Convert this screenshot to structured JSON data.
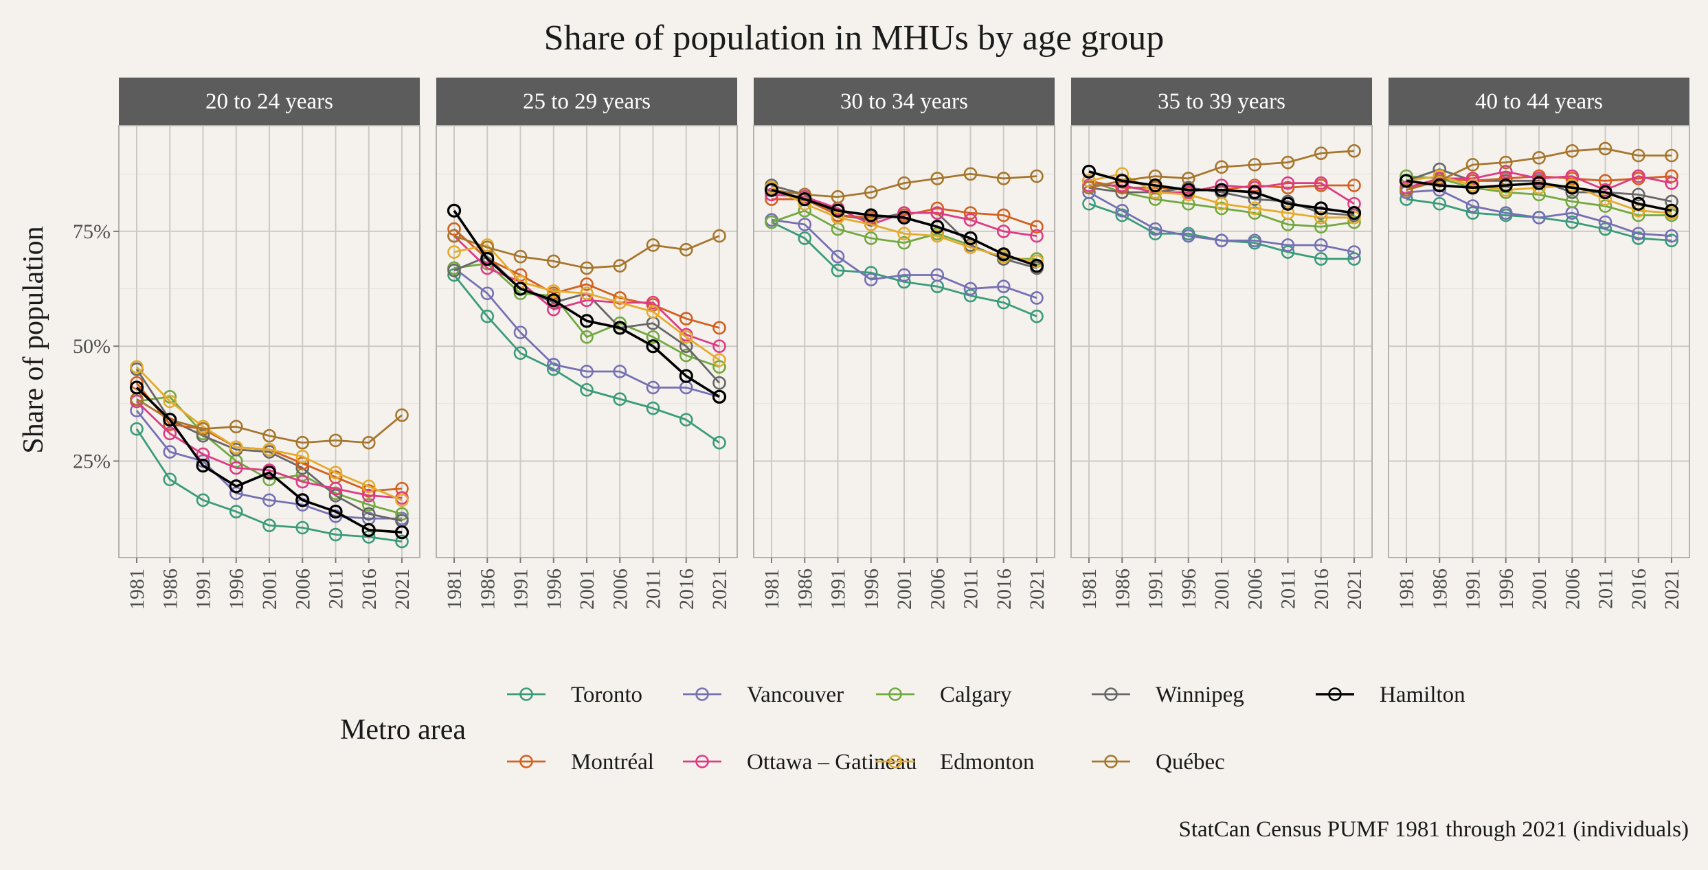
{
  "chart_data": {
    "type": "line",
    "title": "Share of population in MHUs by age group",
    "ylabel": "Share of population",
    "xlabel": "",
    "caption": "StatCan Census PUMF 1981 through 2021 (individuals)",
    "x": [
      1981,
      1986,
      1991,
      1996,
      2001,
      2006,
      2011,
      2016,
      2021
    ],
    "x_tick_labels": [
      "1981",
      "1986",
      "1991",
      "1996",
      "2001",
      "2006",
      "2011",
      "2016",
      "2021"
    ],
    "ylim": [
      0.04,
      0.98
    ],
    "y_ticks": [
      0.25,
      0.5,
      0.75
    ],
    "y_tick_labels": [
      "25%",
      "50%",
      "75%"
    ],
    "grid": true,
    "legend": {
      "title": "Metro area",
      "position": "bottom",
      "entries": [
        "Toronto",
        "Vancouver",
        "Calgary",
        "Winnipeg",
        "Hamilton",
        "Montréal",
        "Ottawa – Gatineau",
        "Edmonton",
        "Québec"
      ]
    },
    "colors": {
      "Toronto": "#3a9b7a",
      "Vancouver": "#7570b3",
      "Calgary": "#72a840",
      "Winnipeg": "#666666",
      "Hamilton": "#000000",
      "Montréal": "#d45f1e",
      "Ottawa – Gatineau": "#de3b84",
      "Edmonton": "#e4ab2c",
      "Québec": "#a6762c"
    },
    "facets": [
      {
        "label": "20 to 24 years",
        "series": [
          {
            "name": "Toronto",
            "values": [
              0.32,
              0.21,
              0.165,
              0.14,
              0.11,
              0.105,
              0.09,
              0.085,
              0.075
            ]
          },
          {
            "name": "Vancouver",
            "values": [
              0.36,
              0.27,
              0.25,
              0.18,
              0.165,
              0.155,
              0.13,
              0.125,
              0.125
            ]
          },
          {
            "name": "Calgary",
            "values": [
              0.38,
              0.39,
              0.31,
              0.25,
              0.21,
              0.22,
              0.18,
              0.155,
              0.135
            ]
          },
          {
            "name": "Winnipeg",
            "values": [
              0.45,
              0.34,
              0.305,
              0.275,
              0.27,
              0.235,
              0.175,
              0.135,
              0.12
            ]
          },
          {
            "name": "Hamilton",
            "values": [
              0.41,
              0.34,
              0.24,
              0.195,
              0.225,
              0.165,
              0.14,
              0.1,
              0.095
            ]
          },
          {
            "name": "Montréal",
            "values": [
              0.42,
              0.33,
              0.32,
              0.28,
              0.275,
              0.245,
              0.215,
              0.185,
              0.19
            ]
          },
          {
            "name": "Ottawa – Gatineau",
            "values": [
              0.38,
              0.31,
              0.265,
              0.235,
              0.23,
              0.205,
              0.19,
              0.175,
              0.17
            ]
          },
          {
            "name": "Edmonton",
            "values": [
              0.455,
              0.38,
              0.325,
              0.28,
              0.275,
              0.26,
              0.225,
              0.195,
              0.165
            ]
          },
          {
            "name": "Québec",
            "values": [
              0.385,
              0.34,
              0.32,
              0.325,
              0.305,
              0.29,
              0.295,
              0.29,
              0.35
            ]
          }
        ]
      },
      {
        "label": "25 to 29 years",
        "series": [
          {
            "name": "Toronto",
            "values": [
              0.655,
              0.565,
              0.485,
              0.45,
              0.405,
              0.385,
              0.365,
              0.34,
              0.29
            ]
          },
          {
            "name": "Vancouver",
            "values": [
              0.67,
              0.615,
              0.53,
              0.46,
              0.445,
              0.445,
              0.41,
              0.41,
              0.39
            ]
          },
          {
            "name": "Calgary",
            "values": [
              0.67,
              0.68,
              0.615,
              0.61,
              0.52,
              0.55,
              0.52,
              0.48,
              0.455
            ]
          },
          {
            "name": "Winnipeg",
            "values": [
              0.665,
              0.695,
              0.625,
              0.595,
              0.615,
              0.54,
              0.55,
              0.5,
              0.42
            ]
          },
          {
            "name": "Hamilton",
            "values": [
              0.795,
              0.69,
              0.625,
              0.6,
              0.555,
              0.54,
              0.5,
              0.435,
              0.39
            ]
          },
          {
            "name": "Montréal",
            "values": [
              0.755,
              0.69,
              0.655,
              0.615,
              0.635,
              0.605,
              0.59,
              0.56,
              0.54
            ]
          },
          {
            "name": "Ottawa – Gatineau",
            "values": [
              0.74,
              0.67,
              0.64,
              0.58,
              0.6,
              0.595,
              0.595,
              0.525,
              0.5
            ]
          },
          {
            "name": "Edmonton",
            "values": [
              0.705,
              0.72,
              0.64,
              0.62,
              0.615,
              0.595,
              0.575,
              0.52,
              0.47
            ]
          },
          {
            "name": "Québec",
            "values": [
              0.74,
              0.715,
              0.695,
              0.685,
              0.67,
              0.675,
              0.72,
              0.71,
              0.74
            ]
          }
        ]
      },
      {
        "label": "30 to 34 years",
        "series": [
          {
            "name": "Toronto",
            "values": [
              0.77,
              0.735,
              0.665,
              0.66,
              0.64,
              0.63,
              0.61,
              0.595,
              0.565
            ]
          },
          {
            "name": "Vancouver",
            "values": [
              0.775,
              0.765,
              0.695,
              0.645,
              0.655,
              0.655,
              0.625,
              0.63,
              0.605
            ]
          },
          {
            "name": "Calgary",
            "values": [
              0.77,
              0.795,
              0.755,
              0.735,
              0.725,
              0.745,
              0.72,
              0.69,
              0.69
            ]
          },
          {
            "name": "Winnipeg",
            "values": [
              0.85,
              0.83,
              0.785,
              0.775,
              0.79,
              0.79,
              0.72,
              0.69,
              0.67
            ]
          },
          {
            "name": "Hamilton",
            "values": [
              0.84,
              0.82,
              0.795,
              0.785,
              0.78,
              0.76,
              0.735,
              0.7,
              0.675
            ]
          },
          {
            "name": "Montréal",
            "values": [
              0.82,
              0.82,
              0.785,
              0.78,
              0.785,
              0.8,
              0.79,
              0.785,
              0.76
            ]
          },
          {
            "name": "Ottawa – Gatineau",
            "values": [
              0.83,
              0.825,
              0.8,
              0.765,
              0.79,
              0.79,
              0.775,
              0.75,
              0.74
            ]
          },
          {
            "name": "Edmonton",
            "values": [
              0.845,
              0.81,
              0.78,
              0.765,
              0.745,
              0.74,
              0.715,
              0.695,
              0.685
            ]
          },
          {
            "name": "Québec",
            "values": [
              0.84,
              0.83,
              0.825,
              0.835,
              0.855,
              0.865,
              0.875,
              0.865,
              0.87
            ]
          }
        ]
      },
      {
        "label": "35 to 39 years",
        "series": [
          {
            "name": "Toronto",
            "values": [
              0.81,
              0.785,
              0.745,
              0.745,
              0.73,
              0.725,
              0.705,
              0.69,
              0.69
            ]
          },
          {
            "name": "Vancouver",
            "values": [
              0.835,
              0.795,
              0.755,
              0.74,
              0.73,
              0.73,
              0.72,
              0.72,
              0.705
            ]
          },
          {
            "name": "Calgary",
            "values": [
              0.86,
              0.835,
              0.82,
              0.81,
              0.8,
              0.79,
              0.765,
              0.76,
              0.77
            ]
          },
          {
            "name": "Winnipeg",
            "values": [
              0.845,
              0.835,
              0.835,
              0.845,
              0.835,
              0.82,
              0.815,
              0.79,
              0.785
            ]
          },
          {
            "name": "Hamilton",
            "values": [
              0.88,
              0.86,
              0.85,
              0.84,
              0.84,
              0.835,
              0.81,
              0.8,
              0.79
            ]
          },
          {
            "name": "Montréal",
            "values": [
              0.86,
              0.845,
              0.845,
              0.84,
              0.84,
              0.85,
              0.845,
              0.85,
              0.85
            ]
          },
          {
            "name": "Ottawa – Gatineau",
            "values": [
              0.85,
              0.85,
              0.835,
              0.835,
              0.85,
              0.845,
              0.855,
              0.855,
              0.81
            ]
          },
          {
            "name": "Edmonton",
            "values": [
              0.86,
              0.875,
              0.835,
              0.83,
              0.81,
              0.8,
              0.79,
              0.78,
              0.78
            ]
          },
          {
            "name": "Québec",
            "values": [
              0.845,
              0.86,
              0.87,
              0.865,
              0.89,
              0.895,
              0.9,
              0.92,
              0.925
            ]
          }
        ]
      },
      {
        "label": "40 to 44 years",
        "series": [
          {
            "name": "Toronto",
            "values": [
              0.82,
              0.81,
              0.79,
              0.785,
              0.78,
              0.77,
              0.755,
              0.735,
              0.73
            ]
          },
          {
            "name": "Vancouver",
            "values": [
              0.835,
              0.84,
              0.805,
              0.79,
              0.78,
              0.79,
              0.77,
              0.745,
              0.74
            ]
          },
          {
            "name": "Calgary",
            "values": [
              0.87,
              0.865,
              0.845,
              0.835,
              0.83,
              0.815,
              0.805,
              0.785,
              0.785
            ]
          },
          {
            "name": "Winnipeg",
            "values": [
              0.86,
              0.885,
              0.86,
              0.86,
              0.86,
              0.835,
              0.835,
              0.83,
              0.815
            ]
          },
          {
            "name": "Hamilton",
            "values": [
              0.86,
              0.85,
              0.845,
              0.85,
              0.855,
              0.845,
              0.835,
              0.81,
              0.795
            ]
          },
          {
            "name": "Montréal",
            "values": [
              0.84,
              0.865,
              0.86,
              0.865,
              0.87,
              0.865,
              0.86,
              0.865,
              0.87
            ]
          },
          {
            "name": "Ottawa – Gatineau",
            "values": [
              0.845,
              0.865,
              0.865,
              0.88,
              0.865,
              0.87,
              0.84,
              0.87,
              0.855
            ]
          },
          {
            "name": "Edmonton",
            "values": [
              0.86,
              0.87,
              0.85,
              0.84,
              0.845,
              0.85,
              0.82,
              0.795,
              0.79
            ]
          },
          {
            "name": "Québec",
            "values": [
              0.84,
              0.86,
              0.895,
              0.9,
              0.91,
              0.925,
              0.93,
              0.915,
              0.915
            ]
          }
        ]
      }
    ]
  }
}
